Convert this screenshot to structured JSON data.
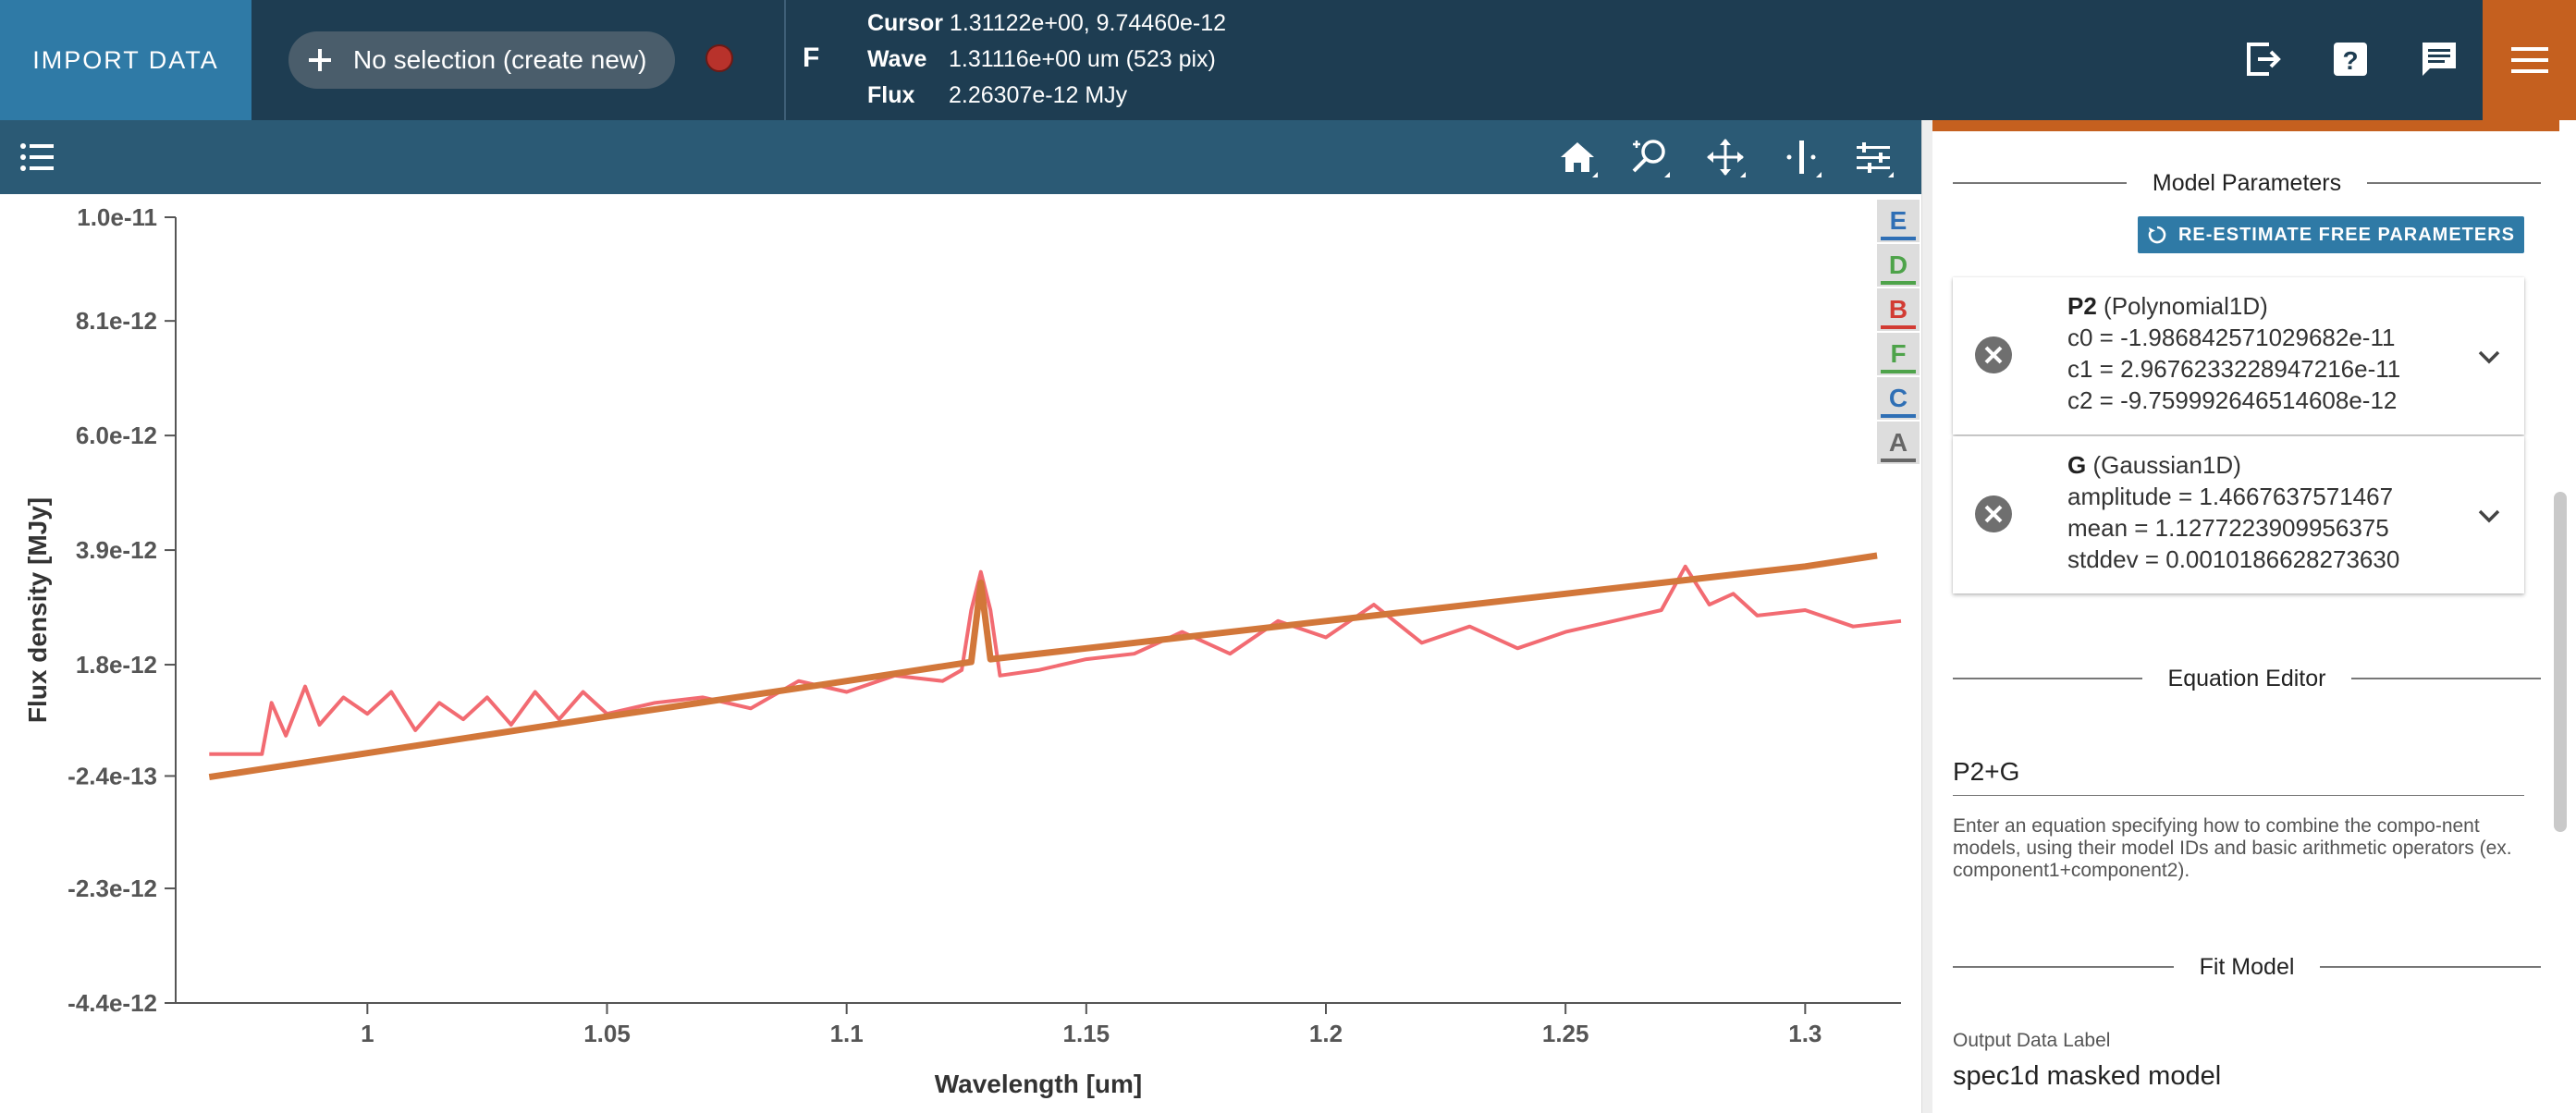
{
  "header": {
    "import_label": "IMPORT DATA",
    "subset_label": "No selection (create new)",
    "viewer_ref": "F",
    "cursor_label": "Cursor",
    "cursor_value": "1.31122e+00, 9.74460e-12",
    "wave_label": "Wave",
    "wave_value": "1.31116e+00 um (523 pix)",
    "flux_label": "Flux",
    "flux_value": "2.26307e-12 MJy",
    "icons": [
      "export-icon",
      "help-icon",
      "feedback-icon",
      "menu-icon"
    ],
    "accent_color": "#c5601f",
    "subset_color": "#b8322b"
  },
  "viewer_toolbar": {
    "icons": [
      "layers-icon",
      "home-icon",
      "zoom-icon",
      "pan-icon",
      "select-icon",
      "settings-icon"
    ]
  },
  "chart_data": {
    "type": "line",
    "xlabel": "Wavelength [um]",
    "ylabel": "Flux density [MJy]",
    "xlim": [
      0.96,
      1.32
    ],
    "ylim": [
      -4.4e-12,
      1e-11
    ],
    "x_ticks": [
      1,
      1.05,
      1.1,
      1.15,
      1.2,
      1.25,
      1.3
    ],
    "x_tick_labels": [
      "1",
      "1.05",
      "1.1",
      "1.15",
      "1.2",
      "1.25",
      "1.3"
    ],
    "y_ticks": [
      1e-11,
      8.1e-12,
      6e-12,
      3.9e-12,
      1.8e-12,
      -2.4e-13,
      -2.3e-12,
      -4.4e-12
    ],
    "y_tick_labels": [
      "1.0e-11",
      "8.1e-12",
      "6.0e-12",
      "3.9e-12",
      "1.8e-12",
      "-2.4e-13",
      "-2.3e-12",
      "-4.4e-12"
    ],
    "grid": false,
    "series": [
      {
        "name": "spectrum",
        "color": "#f26b72",
        "x": [
          0.967,
          0.978,
          0.98,
          0.983,
          0.987,
          0.99,
          0.995,
          1.0,
          1.005,
          1.01,
          1.015,
          1.02,
          1.025,
          1.03,
          1.035,
          1.04,
          1.045,
          1.05,
          1.06,
          1.07,
          1.08,
          1.09,
          1.1,
          1.11,
          1.12,
          1.124,
          1.126,
          1.128,
          1.13,
          1.132,
          1.14,
          1.15,
          1.16,
          1.17,
          1.18,
          1.19,
          1.2,
          1.21,
          1.22,
          1.23,
          1.24,
          1.25,
          1.26,
          1.27,
          1.275,
          1.28,
          1.285,
          1.29,
          1.3,
          1.31,
          1.32
        ],
        "y": [
          1.6e-13,
          1.6e-13,
          1.1e-12,
          5e-13,
          1.4e-12,
          7e-13,
          1.2e-12,
          9e-13,
          1.3e-12,
          6e-13,
          1.1e-12,
          8e-13,
          1.2e-12,
          7e-13,
          1.3e-12,
          8e-13,
          1.3e-12,
          9e-13,
          1.1e-12,
          1.2e-12,
          1e-12,
          1.5e-12,
          1.3e-12,
          1.6e-12,
          1.5e-12,
          1.7e-12,
          2.8e-12,
          3.5e-12,
          2.8e-12,
          1.6e-12,
          1.7e-12,
          1.9e-12,
          2e-12,
          2.4e-12,
          2e-12,
          2.6e-12,
          2.3e-12,
          2.9e-12,
          2.2e-12,
          2.5e-12,
          2.1e-12,
          2.4e-12,
          2.6e-12,
          2.8e-12,
          3.6e-12,
          2.9e-12,
          3.1e-12,
          2.7e-12,
          2.8e-12,
          2.5e-12,
          2.6e-12
        ]
      },
      {
        "name": "model",
        "color": "#d2773a",
        "x": [
          0.967,
          1.0,
          1.05,
          1.1,
          1.126,
          1.128,
          1.13,
          1.15,
          1.2,
          1.25,
          1.3,
          1.315
        ],
        "y": [
          -2.6e-13,
          1.8e-13,
          8.5e-13,
          1.5e-12,
          1.85e-12,
          3.3e-12,
          1.9e-12,
          2.1e-12,
          2.6e-12,
          3.1e-12,
          3.6e-12,
          3.8e-12
        ]
      }
    ]
  },
  "legend_buttons": [
    {
      "label": "E",
      "color": "#2f6fb5"
    },
    {
      "label": "D",
      "color": "#4ea34a"
    },
    {
      "label": "B",
      "color": "#d23b33"
    },
    {
      "label": "F",
      "color": "#4ea34a"
    },
    {
      "label": "C",
      "color": "#2f6fb5"
    },
    {
      "label": "A",
      "color": "#666666"
    }
  ],
  "panel": {
    "model_params_title": "Model Parameters",
    "reestimate_label": "RE-ESTIMATE FREE PARAMETERS",
    "components": [
      {
        "id": "P2",
        "type": "(Polynomial1D)",
        "params": [
          "c0 = -1.986842571029682e-11",
          "c1 = 2.9676233228947216e-11",
          "c2 = -9.759992646514608e-12"
        ]
      },
      {
        "id": "G",
        "type": "(Gaussian1D)",
        "params": [
          "amplitude = 1.4667637571467",
          "mean = 1.1277223909956375",
          "stddev = 0.0010186628273630"
        ]
      }
    ],
    "equation_title": "Equation Editor",
    "equation_value": "P2+G",
    "equation_hint": "Enter an equation specifying how to combine the compo-nent models, using their model IDs and basic arithmetic operators (ex. component1+component2).",
    "fit_title": "Fit Model",
    "output_label": "Output Data Label",
    "output_value": "spec1d masked model"
  }
}
